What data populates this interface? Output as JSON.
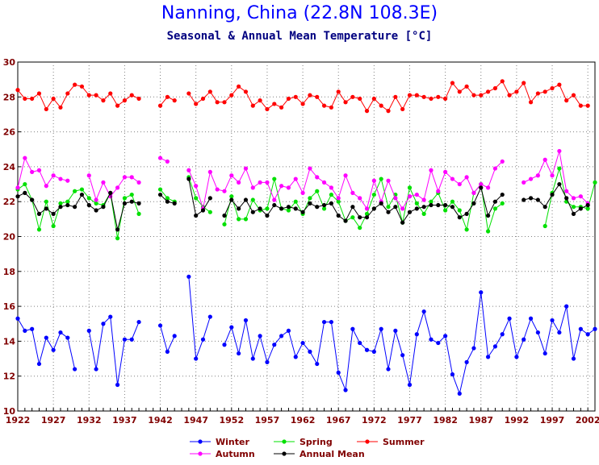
{
  "chart_data": {
    "type": "line",
    "title": "Nanning, China (22.8N 108.3E)",
    "subtitle": "Seasonal & Annual Mean Temperature [°C]",
    "xlabel": "",
    "ylabel": "",
    "xlim": [
      1922,
      2003
    ],
    "ylim": [
      10,
      30
    ],
    "xticks": [
      "1922",
      "1927",
      "1932",
      "1937",
      "1942",
      "1947",
      "1952",
      "1957",
      "1962",
      "1967",
      "1972",
      "1977",
      "1982",
      "1987",
      "1992",
      "1997",
      "2002"
    ],
    "yticks": [
      "10",
      "12",
      "14",
      "16",
      "18",
      "20",
      "22",
      "24",
      "26",
      "28",
      "30"
    ],
    "grid": true,
    "legend_position": "bottom",
    "x": [
      1922,
      1923,
      1924,
      1925,
      1926,
      1927,
      1928,
      1929,
      1930,
      1931,
      1932,
      1933,
      1934,
      1935,
      1936,
      1937,
      1938,
      1939,
      1940,
      1941,
      1942,
      1943,
      1944,
      1945,
      1946,
      1947,
      1948,
      1949,
      1950,
      1951,
      1952,
      1953,
      1954,
      1955,
      1956,
      1957,
      1958,
      1959,
      1960,
      1961,
      1962,
      1963,
      1964,
      1965,
      1966,
      1967,
      1968,
      1969,
      1970,
      1971,
      1972,
      1973,
      1974,
      1975,
      1976,
      1977,
      1978,
      1979,
      1980,
      1981,
      1982,
      1983,
      1984,
      1985,
      1986,
      1987,
      1988,
      1989,
      1990,
      1991,
      1992,
      1993,
      1994,
      1995,
      1996,
      1997,
      1998,
      1999,
      2000,
      2001,
      2002,
      2003
    ],
    "series": [
      {
        "name": "Winter",
        "color": "#0000ff",
        "values": [
          15.3,
          14.6,
          14.7,
          12.7,
          14.2,
          13.5,
          14.5,
          14.2,
          12.4,
          null,
          14.6,
          12.4,
          15.0,
          15.4,
          11.5,
          14.1,
          14.1,
          15.1,
          null,
          null,
          14.9,
          13.4,
          14.3,
          null,
          17.7,
          13.0,
          14.1,
          15.4,
          null,
          13.8,
          14.8,
          13.3,
          15.2,
          13.0,
          14.3,
          12.8,
          13.8,
          14.3,
          14.6,
          13.1,
          13.9,
          13.4,
          12.7,
          15.1,
          15.1,
          12.2,
          11.2,
          14.7,
          13.9,
          13.5,
          13.4,
          14.7,
          12.4,
          14.6,
          13.2,
          11.5,
          14.4,
          15.7,
          14.1,
          13.9,
          14.3,
          12.1,
          11.0,
          12.8,
          13.6,
          16.8,
          13.1,
          13.7,
          14.4,
          15.3,
          13.1,
          14.1,
          15.3,
          14.5,
          13.3,
          15.2,
          14.5,
          16.0,
          13.0,
          14.7,
          14.4,
          14.7
        ]
      },
      {
        "name": "Spring",
        "color": "#00e000",
        "values": [
          22.7,
          23.0,
          22.1,
          20.4,
          22.0,
          20.6,
          21.9,
          22.0,
          22.6,
          22.7,
          22.2,
          21.9,
          21.8,
          22.5,
          19.9,
          22.2,
          22.4,
          21.3,
          null,
          null,
          22.7,
          22.2,
          22.0,
          null,
          23.4,
          22.2,
          21.7,
          21.4,
          null,
          20.7,
          22.3,
          21.0,
          21.0,
          22.1,
          21.5,
          21.6,
          23.3,
          21.6,
          21.5,
          22.0,
          21.3,
          22.2,
          22.6,
          21.6,
          22.4,
          22.0,
          20.9,
          21.1,
          20.5,
          21.3,
          22.4,
          23.3,
          21.7,
          22.4,
          20.8,
          22.8,
          21.9,
          21.3,
          22.0,
          22.5,
          21.5,
          22.0,
          21.5,
          20.4,
          22.5,
          23.0,
          20.3,
          21.6,
          21.9,
          null,
          null,
          null,
          null,
          null,
          20.6,
          22.5,
          23.9,
          22.0,
          21.7,
          21.7,
          21.6,
          23.1
        ]
      },
      {
        "name": "Summer",
        "color": "#ff0000",
        "values": [
          28.4,
          27.9,
          27.9,
          28.2,
          27.3,
          27.9,
          27.4,
          28.2,
          28.7,
          28.6,
          28.1,
          28.1,
          27.8,
          28.2,
          27.5,
          27.8,
          28.1,
          27.9,
          null,
          null,
          27.5,
          28.0,
          27.8,
          null,
          28.2,
          27.6,
          27.9,
          28.3,
          27.7,
          27.7,
          28.1,
          28.6,
          28.3,
          27.5,
          27.8,
          27.3,
          27.6,
          27.4,
          27.9,
          28.0,
          27.6,
          28.1,
          28.0,
          27.5,
          27.4,
          28.3,
          27.7,
          28.0,
          27.9,
          27.2,
          27.9,
          27.5,
          27.2,
          28.0,
          27.3,
          28.1,
          28.1,
          28.0,
          27.9,
          28.0,
          27.9,
          28.8,
          28.3,
          28.6,
          28.1,
          28.1,
          28.3,
          28.5,
          28.9,
          28.1,
          28.3,
          28.8,
          27.7,
          28.2,
          28.3,
          28.5,
          28.7,
          27.8,
          28.1,
          27.5,
          27.5,
          null
        ]
      },
      {
        "name": "Autumn",
        "color": "#ff00ff",
        "values": [
          22.8,
          24.5,
          23.7,
          23.8,
          22.9,
          23.5,
          23.3,
          23.2,
          null,
          null,
          23.5,
          22.1,
          23.1,
          22.3,
          22.8,
          23.4,
          23.4,
          23.1,
          null,
          null,
          24.5,
          24.3,
          null,
          null,
          23.8,
          22.9,
          21.6,
          23.7,
          22.7,
          22.6,
          23.5,
          23.1,
          23.9,
          22.8,
          23.1,
          23.1,
          22.1,
          22.9,
          22.8,
          23.3,
          22.5,
          23.9,
          23.4,
          23.1,
          22.8,
          22.2,
          23.5,
          22.5,
          22.2,
          21.6,
          23.2,
          22.0,
          23.2,
          22.2,
          21.6,
          22.3,
          22.4,
          22.1,
          23.8,
          22.6,
          23.7,
          23.3,
          23.0,
          23.4,
          22.5,
          23.0,
          22.8,
          23.9,
          24.3,
          null,
          null,
          23.1,
          23.3,
          23.5,
          24.4,
          23.5,
          24.9,
          22.6,
          22.2,
          22.3,
          21.9,
          null
        ]
      },
      {
        "name": "Annual Mean",
        "color": "#000000",
        "values": [
          22.3,
          22.5,
          22.1,
          21.3,
          21.6,
          21.3,
          21.7,
          21.8,
          21.7,
          22.4,
          21.8,
          21.5,
          21.7,
          22.5,
          20.4,
          21.9,
          22.0,
          21.9,
          null,
          null,
          22.4,
          22.0,
          21.9,
          null,
          23.3,
          21.2,
          21.5,
          22.2,
          null,
          21.2,
          22.1,
          21.6,
          22.1,
          21.4,
          21.6,
          21.2,
          21.8,
          21.6,
          21.7,
          21.6,
          21.4,
          21.9,
          21.7,
          21.8,
          21.9,
          21.2,
          20.9,
          21.7,
          21.1,
          21.1,
          21.6,
          21.9,
          21.4,
          21.7,
          20.8,
          21.4,
          21.6,
          21.7,
          21.8,
          21.8,
          21.8,
          21.7,
          21.1,
          21.3,
          21.9,
          22.8,
          21.2,
          22.0,
          22.4,
          null,
          null,
          22.1,
          22.2,
          22.1,
          21.7,
          22.4,
          23.0,
          22.2,
          21.3,
          21.6,
          21.8,
          null
        ]
      }
    ],
    "legend": [
      "Winter",
      "Spring",
      "Summer",
      "Autumn",
      "Annual Mean"
    ]
  }
}
